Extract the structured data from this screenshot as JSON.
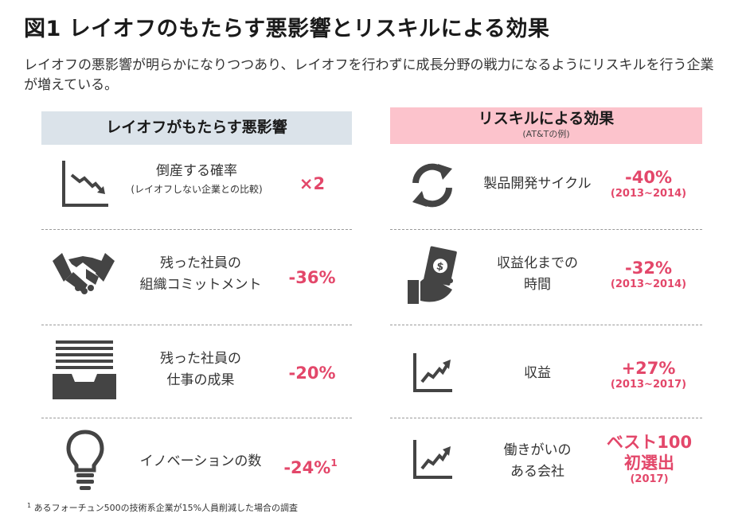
{
  "title": "図1 レイオフのもたらす悪影響とリスキルによる効果",
  "subtitle": "レイオフの悪影響が明らかになりつつあり、レイオフを行わずに成長分野の戦力になるようにリスキルを行う企業が増えている。",
  "left": {
    "header": "レイオフがもたらす悪影響",
    "items": [
      {
        "label1": "倒産する確率",
        "label2": "(レイオフしない企業との比較)",
        "value": "×2",
        "icon": "downtrend-chart-icon"
      },
      {
        "label1": "残った社員の",
        "label2": "組織コミットメント",
        "value": "-36%",
        "icon": "handshake-icon"
      },
      {
        "label1": "残った社員の",
        "label2": "仕事の成果",
        "value": "-20%",
        "icon": "inbox-tray-icon"
      },
      {
        "label1": "イノベーションの数",
        "value": "-24%",
        "note": "1",
        "icon": "lightbulb-icon"
      }
    ]
  },
  "right": {
    "header": "リスキルによる効果",
    "header_sub": "(AT&Tの例)",
    "items": [
      {
        "label1": "製品開発サイクル",
        "value": "-40%",
        "years": "(2013~2014)",
        "icon": "refresh-cycle-icon"
      },
      {
        "label1": "収益化までの",
        "label2": "時間",
        "value": "-32%",
        "years": "(2013~2014)",
        "icon": "money-hand-icon"
      },
      {
        "label1": "収益",
        "value": "+27%",
        "years": "(2013~2017)",
        "icon": "uptrend-chart-icon"
      },
      {
        "label1": "働きがいの",
        "label2": "ある会社",
        "value": "ベスト100",
        "value2": "初選出",
        "years": "(2017)",
        "icon": "uptrend-chart-icon"
      }
    ]
  },
  "footnote": {
    "mark": "1",
    "text": " あるフォーチュン500の技術系企業が15%人員削減した場合の調査"
  },
  "colors": {
    "accent": "#e3476a",
    "left_header_bg": "#dbe3ea",
    "right_header_bg": "#fcc3cc",
    "icon": "#444444"
  }
}
